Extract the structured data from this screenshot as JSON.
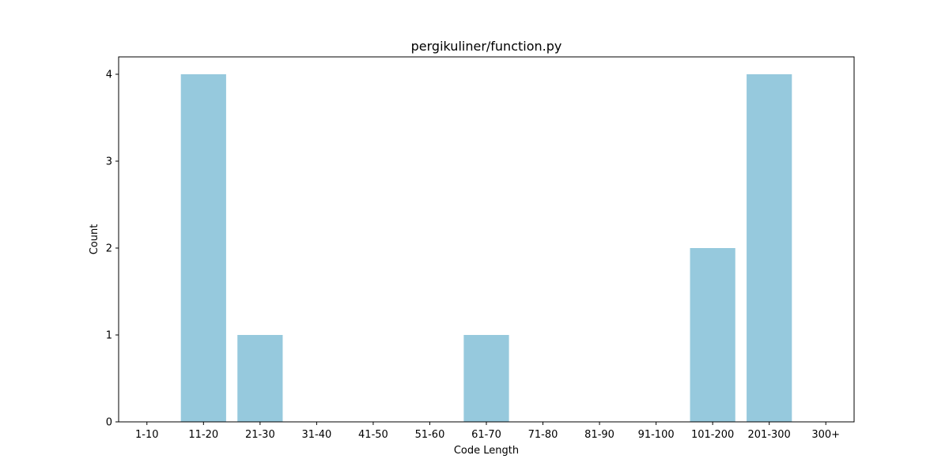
{
  "chart_data": {
    "type": "bar",
    "title": "pergikuliner/function.py",
    "xlabel": "Code Length",
    "ylabel": "Count",
    "categories": [
      "1-10",
      "11-20",
      "21-30",
      "31-40",
      "41-50",
      "51-60",
      "61-70",
      "71-80",
      "81-90",
      "91-100",
      "101-200",
      "201-300",
      "300+"
    ],
    "values": [
      0,
      4,
      1,
      0,
      0,
      0,
      1,
      0,
      0,
      0,
      2,
      4,
      0
    ],
    "yticks": [
      "0",
      "1",
      "2",
      "3",
      "4"
    ],
    "ylim": [
      0,
      4.2
    ],
    "grid": false,
    "legend": "none",
    "bar_color": "#96c9dd"
  }
}
